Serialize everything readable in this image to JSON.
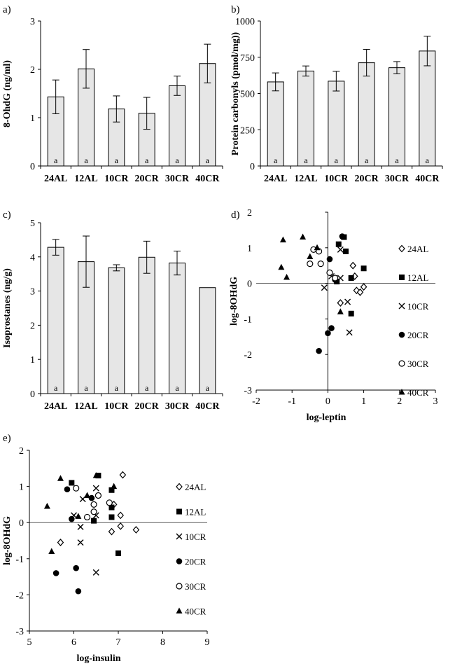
{
  "chart_data": [
    {
      "panel": "a)",
      "type": "bar",
      "categories": [
        "24AL",
        "12AL",
        "10CR",
        "20CR",
        "30CR",
        "40CR"
      ],
      "values": [
        1.43,
        2.01,
        1.18,
        1.09,
        1.66,
        2.12
      ],
      "errors": [
        0.35,
        0.4,
        0.27,
        0.33,
        0.2,
        0.4
      ],
      "bar_labels": [
        "a",
        "a",
        "a",
        "a",
        "a",
        "a"
      ],
      "ylabel": "8-OhdG (ng/ml)",
      "ylim": [
        0,
        3
      ],
      "yticks": [
        "0",
        "1",
        "2",
        "3"
      ]
    },
    {
      "panel": "b)",
      "type": "bar",
      "categories": [
        "24AL",
        "12AL",
        "10CR",
        "20CR",
        "30CR",
        "40CR"
      ],
      "values": [
        580,
        655,
        585,
        712,
        678,
        793
      ],
      "errors": [
        62,
        35,
        68,
        92,
        42,
        102
      ],
      "bar_labels": [
        "a",
        "a",
        "a",
        "a",
        "a",
        "a"
      ],
      "ylabel": "Protein carbonyls (pmol/mg))",
      "ylim": [
        0,
        1000
      ],
      "yticks": [
        "0",
        "250",
        "500",
        "750",
        "1000"
      ]
    },
    {
      "panel": "c)",
      "type": "bar",
      "categories": [
        "24AL",
        "12AL",
        "10CR",
        "20CR",
        "30CR",
        "40CR"
      ],
      "values": [
        4.28,
        3.86,
        3.68,
        3.99,
        3.82,
        3.1
      ],
      "errors": [
        0.23,
        0.75,
        0.09,
        0.47,
        0.35,
        0
      ],
      "bar_labels": [
        "a",
        "a",
        "a",
        "a",
        "a",
        "a"
      ],
      "ylabel": "Isoprostanes (ng/g)",
      "ylim": [
        0,
        5
      ],
      "yticks": [
        "0",
        "1",
        "2",
        "3",
        "4",
        "5"
      ]
    },
    {
      "panel": "d)",
      "type": "scatter",
      "xlabel": "log-leptin",
      "ylabel": "log-8OHdG",
      "xlim": [
        -2,
        3
      ],
      "ylim": [
        -3,
        2
      ],
      "xticks": [
        "-2",
        "-1",
        "0",
        "1",
        "2",
        "3"
      ],
      "yticks": [
        "-3",
        "-2",
        "-1",
        "0",
        "1",
        "2"
      ],
      "series": [
        {
          "name": "24AL",
          "marker": "diamond-open",
          "points": [
            [
              0.35,
              -0.55
            ],
            [
              0.8,
              -0.2
            ],
            [
              0.9,
              -0.25
            ],
            [
              1.0,
              -0.1
            ],
            [
              0.75,
              0.2
            ],
            [
              0.7,
              0.5
            ]
          ]
        },
        {
          "name": "12AL",
          "marker": "square-filled",
          "points": [
            [
              0.45,
              1.3
            ],
            [
              0.3,
              1.1
            ],
            [
              0.5,
              0.9
            ],
            [
              1.0,
              0.42
            ],
            [
              0.65,
              0.15
            ],
            [
              0.25,
              0.05
            ],
            [
              0.65,
              -0.85
            ]
          ]
        },
        {
          "name": "10CR",
          "marker": "x",
          "points": [
            [
              0.35,
              0.95
            ],
            [
              0.1,
              0.2
            ],
            [
              -0.1,
              -0.12
            ],
            [
              0.35,
              0.15
            ],
            [
              0.55,
              -0.52
            ],
            [
              0.6,
              -1.38
            ]
          ]
        },
        {
          "name": "20CR",
          "marker": "circle-filled",
          "points": [
            [
              0.4,
              1.32
            ],
            [
              0.05,
              0.68
            ],
            [
              0.2,
              0.1
            ],
            [
              0.1,
              -1.26
            ],
            [
              0.0,
              -1.4
            ],
            [
              -0.25,
              -1.9
            ]
          ]
        },
        {
          "name": "30CR",
          "marker": "circle-open",
          "points": [
            [
              -0.4,
              0.95
            ],
            [
              -0.5,
              0.55
            ],
            [
              -0.2,
              0.55
            ],
            [
              -0.25,
              0.9
            ],
            [
              0.05,
              0.3
            ],
            [
              0.2,
              0.15
            ]
          ]
        },
        {
          "name": "40CR",
          "marker": "triangle-filled",
          "points": [
            [
              -0.7,
              1.3
            ],
            [
              -1.25,
              1.22
            ],
            [
              -1.3,
              0.45
            ],
            [
              -1.15,
              0.17
            ],
            [
              -0.5,
              0.75
            ],
            [
              -0.3,
              1.0
            ],
            [
              0.35,
              -0.8
            ]
          ]
        }
      ]
    },
    {
      "panel": "e)",
      "type": "scatter",
      "xlabel": "log-insulin",
      "ylabel": "log-8OHdG",
      "xlim": [
        5,
        9
      ],
      "ylim": [
        -3,
        2
      ],
      "xticks": [
        "5",
        "6",
        "7",
        "8",
        "9"
      ],
      "yticks": [
        "-3",
        "-2",
        "-1",
        "0",
        "1",
        "2"
      ],
      "series": [
        {
          "name": "24AL",
          "marker": "diamond-open",
          "points": [
            [
              7.1,
              1.32
            ],
            [
              5.7,
              -0.55
            ],
            [
              7.05,
              0.2
            ],
            [
              7.4,
              -0.2
            ],
            [
              7.05,
              -0.1
            ],
            [
              6.85,
              -0.25
            ],
            [
              6.9,
              0.5
            ]
          ]
        },
        {
          "name": "12AL",
          "marker": "square-filled",
          "points": [
            [
              6.55,
              1.3
            ],
            [
              5.95,
              1.1
            ],
            [
              6.85,
              0.9
            ],
            [
              6.85,
              0.42
            ],
            [
              6.85,
              0.15
            ],
            [
              6.45,
              0.05
            ],
            [
              7.0,
              -0.85
            ]
          ]
        },
        {
          "name": "10CR",
          "marker": "x",
          "points": [
            [
              6.5,
              0.95
            ],
            [
              6.2,
              0.65
            ],
            [
              6.0,
              0.2
            ],
            [
              6.5,
              0.2
            ],
            [
              6.15,
              -0.12
            ],
            [
              6.15,
              -0.55
            ],
            [
              6.5,
              -1.38
            ]
          ]
        },
        {
          "name": "20CR",
          "marker": "circle-filled",
          "points": [
            [
              5.85,
              0.92
            ],
            [
              6.4,
              0.68
            ],
            [
              5.95,
              0.1
            ],
            [
              6.05,
              -1.26
            ],
            [
              5.6,
              -1.4
            ],
            [
              6.1,
              -1.9
            ]
          ]
        },
        {
          "name": "30CR",
          "marker": "circle-open",
          "points": [
            [
              6.05,
              0.95
            ],
            [
              6.55,
              0.75
            ],
            [
              6.8,
              0.55
            ],
            [
              6.45,
              0.5
            ],
            [
              6.45,
              0.3
            ],
            [
              6.3,
              0.15
            ]
          ]
        },
        {
          "name": "40CR",
          "marker": "triangle-filled",
          "points": [
            [
              5.7,
              1.22
            ],
            [
              6.5,
              1.3
            ],
            [
              6.9,
              1.0
            ],
            [
              6.3,
              0.75
            ],
            [
              5.4,
              0.45
            ],
            [
              6.1,
              0.17
            ],
            [
              5.5,
              -0.8
            ]
          ]
        }
      ]
    }
  ]
}
